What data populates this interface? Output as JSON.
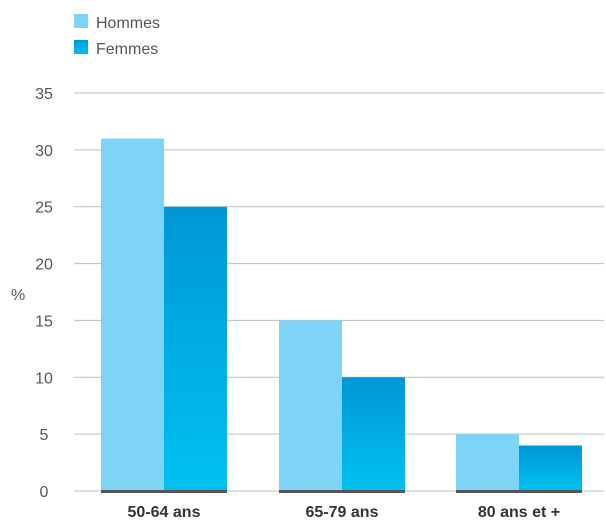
{
  "chart_data": {
    "type": "bar",
    "categories": [
      "50-64 ans",
      "65-79 ans",
      "80 ans et +"
    ],
    "series": [
      {
        "name": "Hommes",
        "values": [
          31,
          15,
          5
        ],
        "color": "#7dd4f7"
      },
      {
        "name": "Femmes",
        "values": [
          25,
          10,
          4
        ],
        "color_top": "#0096d6",
        "color_bottom": "#00c2f0"
      }
    ],
    "ylabel": "%",
    "ylim": [
      0,
      35
    ],
    "yticks": [
      0,
      5,
      10,
      15,
      20,
      25,
      30,
      35
    ],
    "grid": true,
    "legend": "top-left"
  }
}
